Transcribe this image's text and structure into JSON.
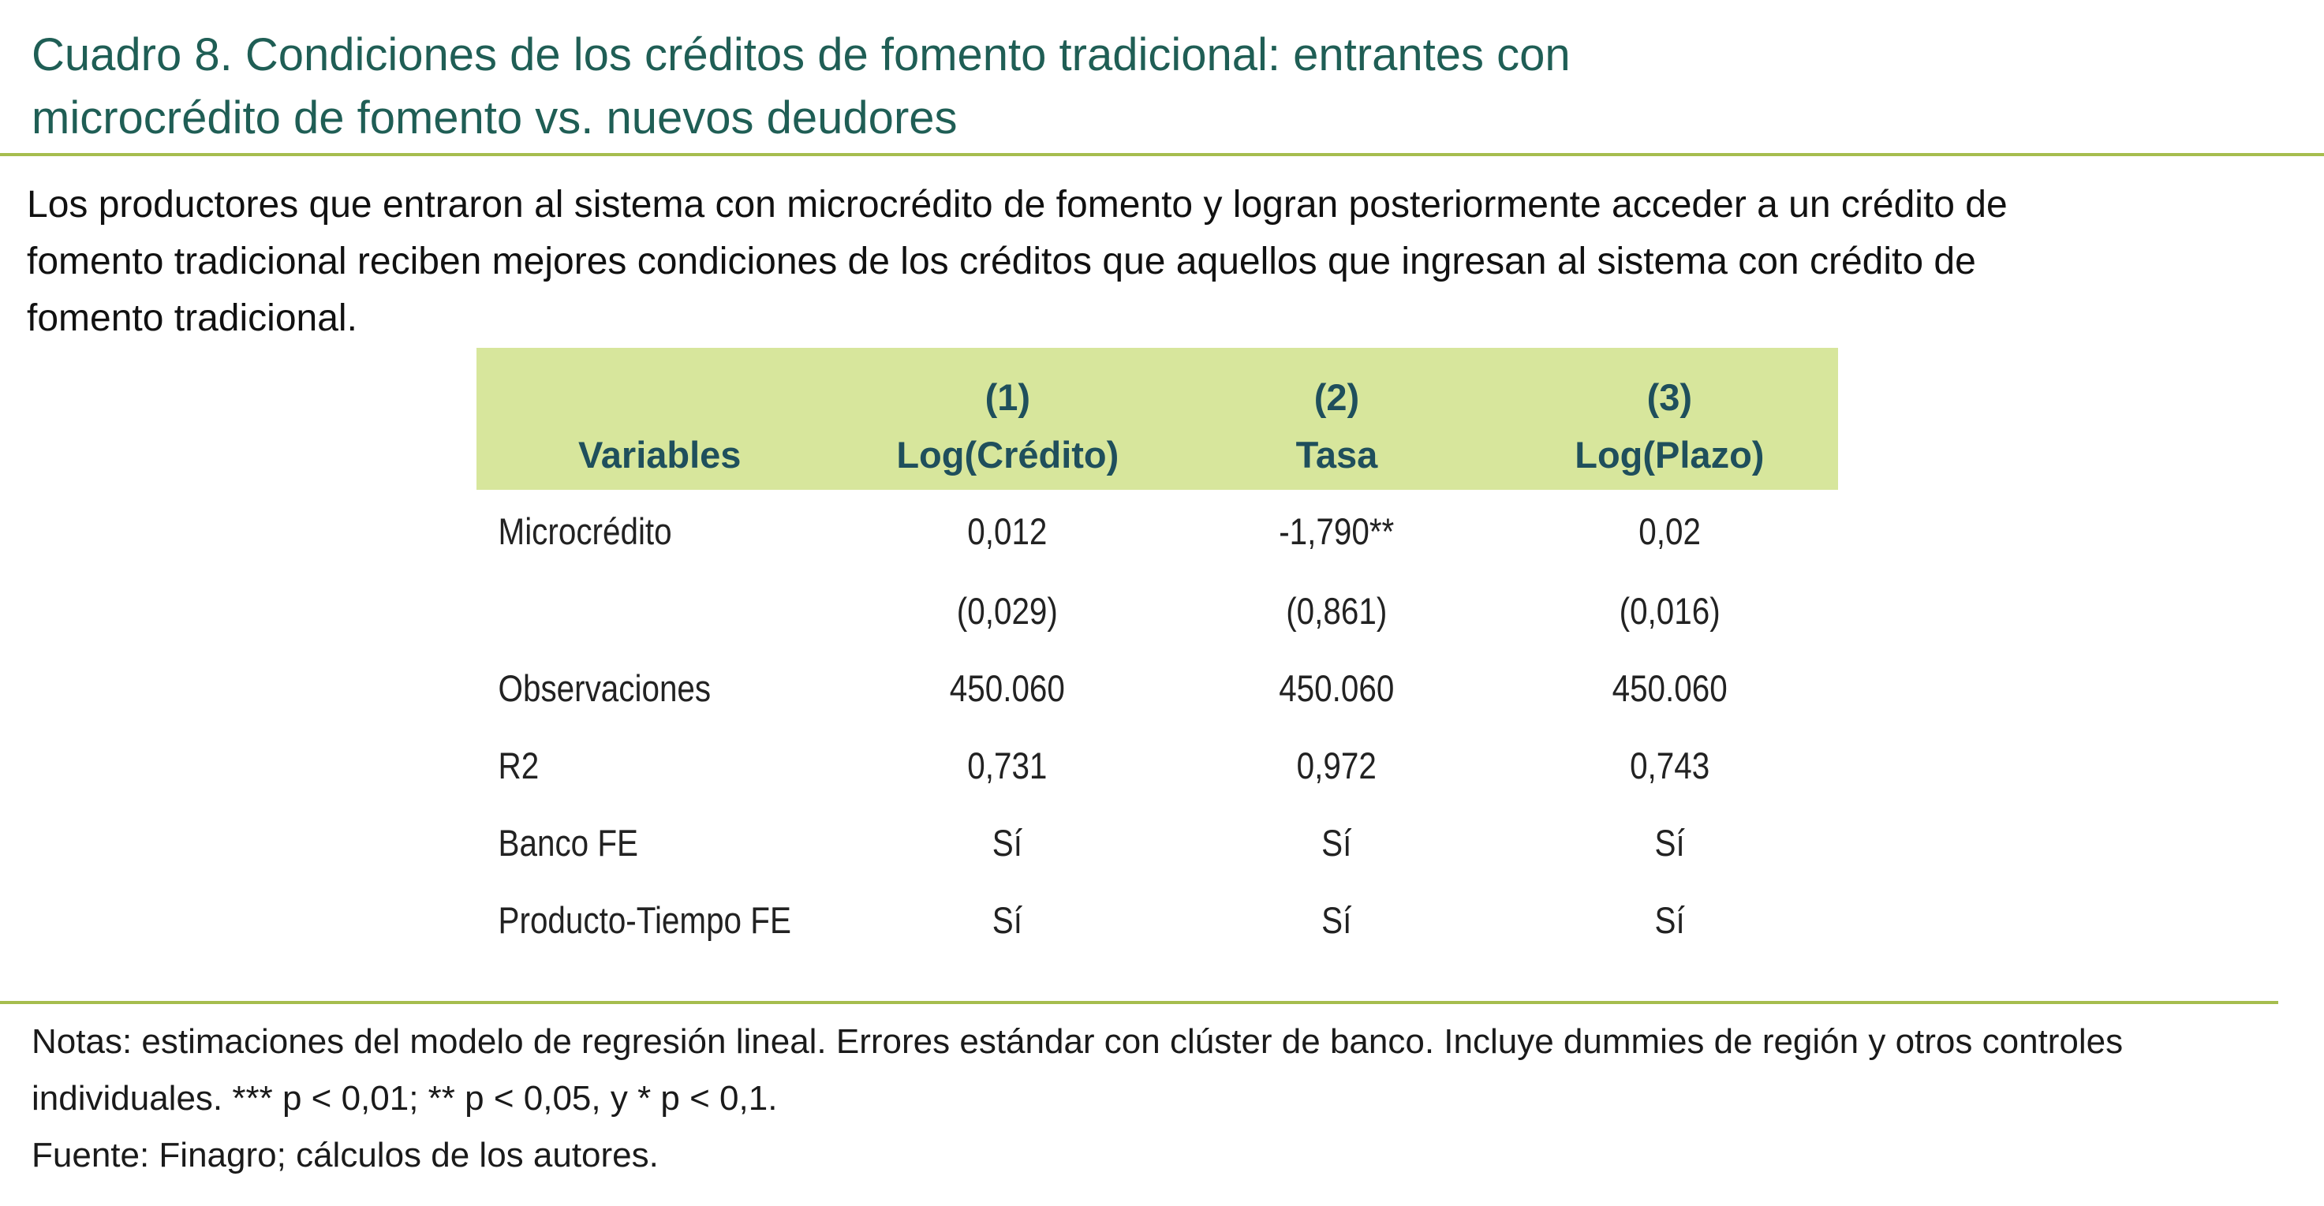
{
  "title": {
    "line1": "Cuadro 8. Condiciones de los créditos de fomento tradicional: entrantes con",
    "line2": "microcrédito de fomento vs. nuevos deudores"
  },
  "lead": {
    "line1": "Los productores que entraron al sistema con microcrédito de fomento y logran posteriormente acceder a un crédito de",
    "line2": "fomento tradicional reciben mejores condiciones de los créditos que aquellos que ingresan al sistema con crédito de",
    "line3": "fomento tradicional."
  },
  "table": {
    "header": {
      "variables": "Variables",
      "col_numbers": [
        "(1)",
        "(2)",
        "(3)"
      ],
      "col_names": [
        "Log(Crédito)",
        "Tasa",
        "Log(Plazo)"
      ]
    },
    "rows": [
      {
        "label": "Microcrédito",
        "values": [
          "0,012",
          "-1,790**",
          "0,02"
        ]
      },
      {
        "label": "",
        "values": [
          "(0,029)",
          "(0,861)",
          "(0,016)"
        ]
      },
      {
        "label": "Observaciones",
        "values": [
          "450.060",
          "450.060",
          "450.060"
        ]
      },
      {
        "label": "R2",
        "values": [
          "0,731",
          "0,972",
          "0,743"
        ]
      },
      {
        "label": "Banco FE",
        "values": [
          "Sí",
          "Sí",
          "Sí"
        ]
      },
      {
        "label": "Producto-Tiempo FE",
        "values": [
          "Sí",
          "Sí",
          "Sí"
        ]
      }
    ]
  },
  "notes": {
    "line1": "Notas: estimaciones del modelo de regresión lineal. Errores estándar con clúster de banco. Incluye dummies de región y otros controles",
    "line2": "individuales. *** p  < 0,01; ** p  < 0,05, y * p  < 0,1.",
    "line3": "Fuente: Finagro; cálculos de los autores."
  },
  "colors": {
    "title": "#1f5e55",
    "rule": "#a6bd4e",
    "header_bg": "#d7e69c",
    "header_text": "#1f4f5c"
  }
}
